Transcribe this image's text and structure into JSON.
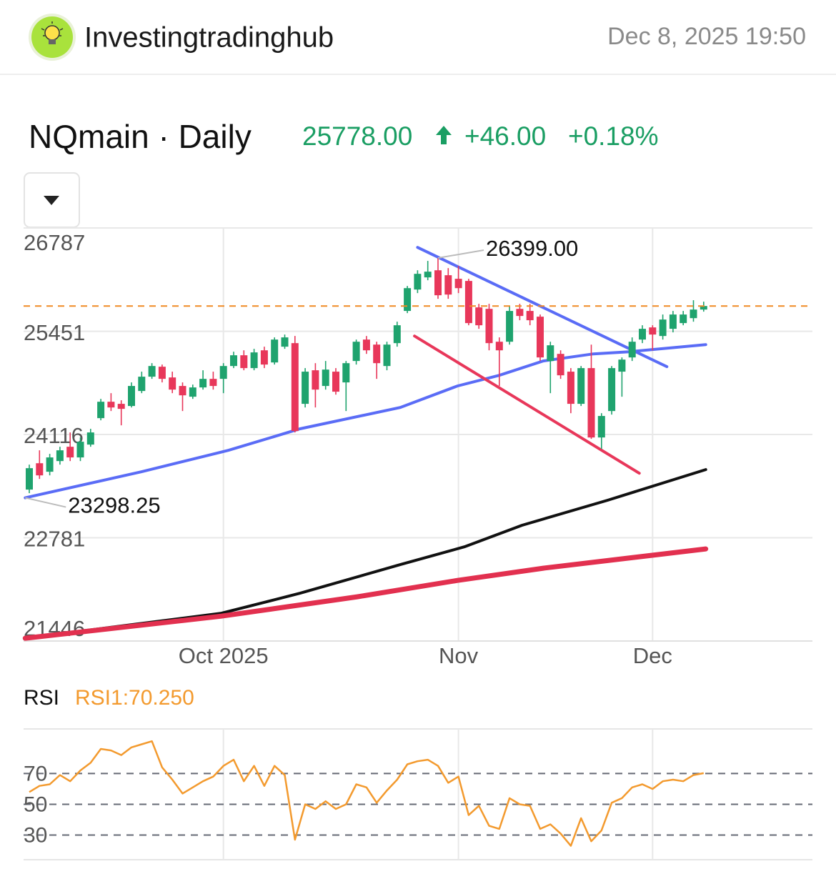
{
  "header": {
    "name": "Investingtradinghub",
    "datetime": "Dec 8, 2025 19:50"
  },
  "chart_data": {
    "type": "candlestick",
    "title": "NQmain · Daily",
    "price": {
      "value": 25778,
      "label": "25778.00"
    },
    "change": "+46.00",
    "change_pct": "+0.18%",
    "up_color": "#1fa36e",
    "down_color": "#e8375a",
    "categories": [
      null,
      null,
      null,
      null,
      null,
      null,
      null,
      null,
      null,
      null,
      null,
      null,
      null,
      null,
      null,
      null,
      null,
      null,
      null,
      "Oct 2025",
      null,
      null,
      null,
      null,
      null,
      null,
      null,
      null,
      null,
      null,
      null,
      null,
      null,
      null,
      null,
      null,
      null,
      null,
      null,
      null,
      null,
      null,
      "Nov",
      null,
      null,
      null,
      null,
      null,
      null,
      null,
      null,
      null,
      null,
      null,
      null,
      null,
      null,
      null,
      null,
      null,
      null,
      "Dec",
      null,
      null,
      null,
      null,
      null
    ],
    "open": [
      23404,
      23745,
      23635,
      23773,
      23958,
      23820,
      23986,
      24328,
      24540,
      24513,
      24485,
      24679,
      24864,
      24993,
      24854,
      24744,
      24605,
      24725,
      24836,
      24836,
      25002,
      25141,
      24975,
      25205,
      25048,
      25252,
      25298,
      24513,
      24947,
      24744,
      24929,
      24790,
      25067,
      25344,
      25279,
      25002,
      25298,
      25714,
      25991,
      26148,
      26240,
      26176,
      26130,
      26102,
      25760,
      25741,
      25316,
      25316,
      25741,
      25714,
      25640,
      25067,
      25159,
      24929,
      24513,
      24975,
      24078,
      24420,
      24929,
      25113,
      25344,
      25501,
      25390,
      25483,
      25557,
      25621,
      25732
    ],
    "high": [
      23727,
      23912,
      23866,
      23958,
      24143,
      24078,
      24190,
      24577,
      24651,
      24559,
      24790,
      24929,
      25039,
      25021,
      24929,
      24790,
      24762,
      24947,
      24929,
      25039,
      25187,
      25205,
      25224,
      25252,
      25372,
      25409,
      25390,
      24975,
      25039,
      25067,
      24975,
      25067,
      25344,
      25390,
      25316,
      25316,
      25575,
      26037,
      26240,
      26361,
      26399,
      26268,
      26296,
      26130,
      25806,
      25806,
      25372,
      25778,
      25806,
      25806,
      25668,
      25316,
      25205,
      24975,
      25002,
      25279,
      24392,
      25002,
      25113,
      25372,
      25529,
      25529,
      25668,
      25714,
      25714,
      25853,
      25834
    ],
    "low": [
      23358,
      23542,
      23588,
      23727,
      23773,
      23773,
      23958,
      24300,
      24420,
      24235,
      24466,
      24651,
      24836,
      24790,
      24651,
      24420,
      24577,
      24697,
      24697,
      24651,
      24975,
      24947,
      24947,
      24975,
      25021,
      25224,
      24143,
      24466,
      24466,
      24697,
      24632,
      24420,
      25021,
      25159,
      24836,
      24947,
      25252,
      25686,
      25945,
      26111,
      25871,
      25871,
      25945,
      25529,
      25483,
      25205,
      24744,
      25279,
      25594,
      25529,
      25067,
      24651,
      24836,
      24392,
      24485,
      24060,
      23930,
      24374,
      24605,
      25067,
      25298,
      25205,
      25344,
      25437,
      25529,
      25575,
      25705
    ],
    "close": [
      23681,
      23588,
      23820,
      23912,
      23820,
      24023,
      24143,
      24540,
      24466,
      24448,
      24744,
      24864,
      25002,
      24836,
      24697,
      24623,
      24725,
      24836,
      24744,
      25002,
      25141,
      24975,
      25178,
      25021,
      25344,
      25372,
      24161,
      24929,
      24697,
      24956,
      24670,
      25039,
      25316,
      25205,
      25039,
      25279,
      25529,
      26009,
      26194,
      26222,
      25917,
      25926,
      26009,
      25557,
      25529,
      25298,
      25205,
      25714,
      25649,
      25594,
      25113,
      25270,
      24882,
      24513,
      24975,
      24078,
      24356,
      24975,
      25085,
      25316,
      25483,
      25409,
      25603,
      25668,
      25668,
      25732,
      25778
    ],
    "ylim": [
      21446,
      26787
    ],
    "yticks": [
      26787,
      25451,
      24116,
      22781,
      21446
    ],
    "grid": true,
    "annotations": [
      {
        "label": "26399.00",
        "x": 40,
        "value": 26399
      },
      {
        "label": "23298.25",
        "x": -0.4,
        "value": 23298.25
      }
    ],
    "moving_averages": [
      {
        "color": "#5a6cf6",
        "width": 4,
        "x": [
          -0.4,
          11,
          19.5,
          26.5,
          36.3,
          41.9,
          46,
          50.3,
          55.2,
          58.7,
          66.2
        ],
        "values": [
          23298.25,
          23635,
          23912,
          24190,
          24466,
          24744,
          24882,
          25067,
          25159,
          25187,
          25279
        ]
      },
      {
        "color": "#111111",
        "width": 4,
        "x": [
          -0.4,
          18.8,
          26.5,
          36.3,
          42.6,
          48.2,
          56.6,
          66.2
        ],
        "values": [
          21482,
          21805,
          22064,
          22434,
          22665,
          22942,
          23266,
          23663
        ]
      },
      {
        "color": "#e2304f",
        "width": 7,
        "x": [
          -0.4,
          18.8,
          32.1,
          41.9,
          50.3,
          66.2
        ],
        "values": [
          21482,
          21768,
          22018,
          22230,
          22388,
          22637
        ]
      }
    ],
    "trendlines": [
      {
        "color": "#5a6cf6",
        "x": [
          38,
          62.4
        ],
        "values": [
          26536,
          24993
        ]
      },
      {
        "color": "#e8375a",
        "x": [
          37.7,
          59.7
        ],
        "values": [
          25390,
          23616
        ]
      }
    ],
    "rsi": {
      "type": "line",
      "title": "RSI",
      "label": "RSI1:70.250",
      "color": "#f39a2e",
      "values": [
        58,
        62,
        63,
        69,
        65,
        72,
        77,
        86,
        85,
        82,
        87,
        89,
        91,
        74,
        66,
        57,
        61,
        65,
        68,
        75,
        79,
        65,
        75,
        62,
        75,
        69,
        27,
        50,
        47,
        52,
        47,
        50,
        63,
        61,
        51,
        59,
        66,
        76,
        78,
        79,
        75,
        64,
        68,
        43,
        49,
        36,
        34,
        54,
        50,
        49,
        34,
        37,
        31,
        23,
        41,
        26,
        33,
        51,
        54,
        61,
        63,
        60,
        65,
        66,
        65,
        69,
        70.25
      ],
      "ylim": [
        14,
        99
      ],
      "yticks": [
        70,
        50,
        30
      ]
    }
  }
}
